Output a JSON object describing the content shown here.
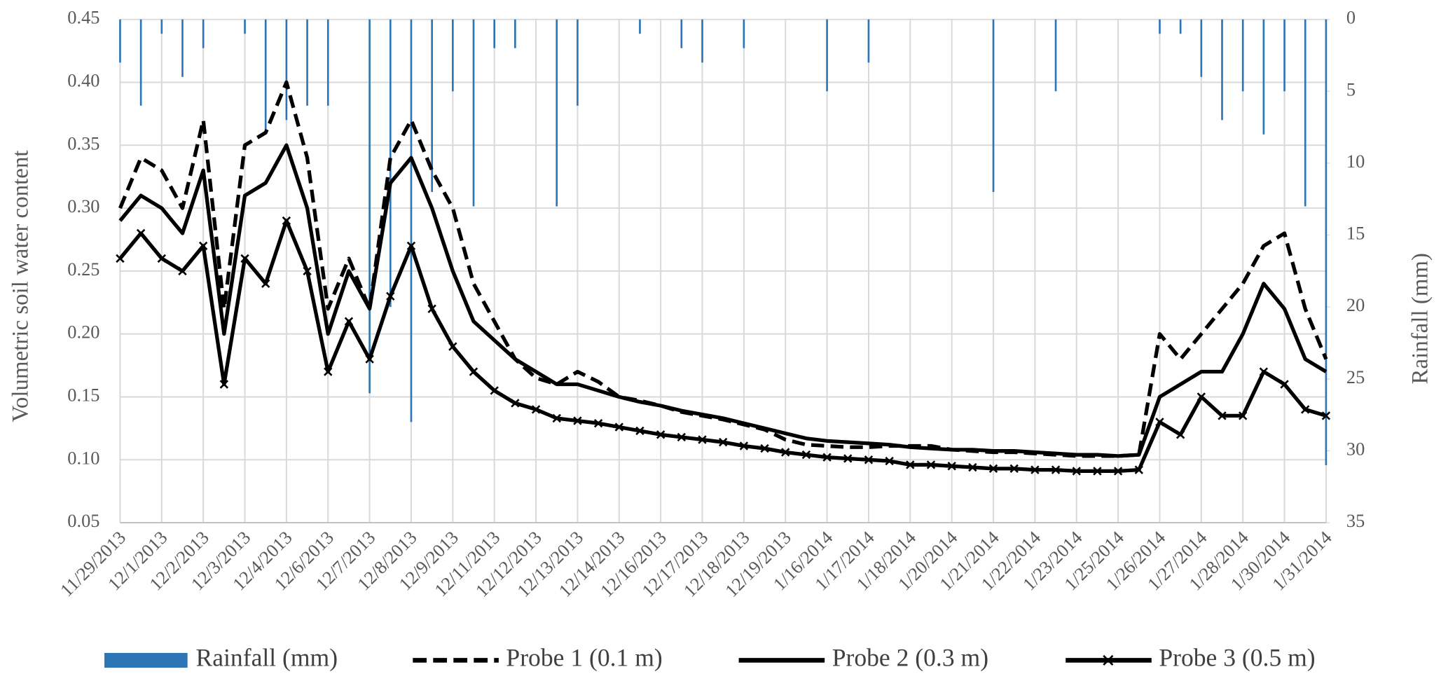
{
  "chart_data": {
    "type": "line",
    "y_label": "Volumetric soil water content",
    "y2_label": "Rainfall (mm)",
    "categories": [
      "11/29/2013",
      null,
      "12/1/2013",
      null,
      "12/2/2013",
      null,
      "12/3/2013",
      null,
      "12/4/2013",
      null,
      "12/6/2013",
      null,
      "12/7/2013",
      null,
      "12/8/2013",
      null,
      "12/9/2013",
      null,
      "12/11/2013",
      null,
      "12/12/2013",
      null,
      "12/13/2013",
      null,
      "12/14/2013",
      null,
      "12/16/2013",
      null,
      "12/17/2013",
      null,
      "12/18/2013",
      null,
      "12/19/2013",
      null,
      "1/16/2014",
      null,
      "1/17/2014",
      null,
      "1/18/2014",
      null,
      "1/20/2014",
      null,
      "1/21/2014",
      null,
      "1/22/2014",
      null,
      "1/23/2014",
      null,
      "1/25/2014",
      null,
      "1/26/2014",
      null,
      "1/27/2014",
      null,
      "1/28/2014",
      null,
      "1/30/2014",
      null,
      "1/31/2014"
    ],
    "series": [
      {
        "name": "Rainfall (mm)",
        "type": "bar",
        "axis": "y2",
        "color": "#2e75b6",
        "values": [
          3,
          6,
          1,
          4,
          2,
          0,
          1,
          8,
          7,
          6,
          6,
          0,
          26,
          20,
          28,
          12,
          5,
          13,
          2,
          2,
          0,
          13,
          6,
          0,
          0,
          1,
          0,
          2,
          3,
          0,
          2,
          0,
          0,
          0,
          5,
          0,
          3,
          0,
          0,
          0,
          0,
          0,
          12,
          0,
          0,
          5,
          0,
          0,
          0,
          0,
          1,
          1,
          4,
          7,
          5,
          8,
          5,
          13,
          31
        ]
      },
      {
        "name": "Probe 1 (0.1 m)",
        "line_style": "dashed",
        "color": "#000000",
        "values": [
          0.3,
          0.34,
          0.33,
          0.3,
          0.37,
          0.22,
          0.35,
          0.36,
          0.4,
          0.34,
          0.22,
          0.26,
          0.22,
          0.34,
          0.37,
          0.33,
          0.3,
          0.24,
          0.21,
          0.18,
          0.165,
          0.16,
          0.17,
          0.162,
          0.15,
          0.147,
          0.143,
          0.138,
          0.135,
          0.132,
          0.128,
          0.124,
          0.116,
          0.112,
          0.111,
          0.11,
          0.11,
          0.111,
          0.111,
          0.111,
          0.108,
          0.107,
          0.106,
          0.106,
          0.105,
          0.104,
          0.103,
          0.103,
          0.103,
          0.104,
          0.2,
          0.18,
          0.2,
          0.22,
          0.24,
          0.27,
          0.28,
          0.22,
          0.18
        ]
      },
      {
        "name": "Probe 2 (0.3 m)",
        "line_style": "solid",
        "color": "#000000",
        "values": [
          0.29,
          0.31,
          0.3,
          0.28,
          0.33,
          0.2,
          0.31,
          0.32,
          0.35,
          0.3,
          0.2,
          0.25,
          0.22,
          0.32,
          0.34,
          0.3,
          0.25,
          0.21,
          0.195,
          0.18,
          0.17,
          0.16,
          0.16,
          0.155,
          0.15,
          0.146,
          0.143,
          0.139,
          0.136,
          0.133,
          0.129,
          0.125,
          0.121,
          0.117,
          0.115,
          0.114,
          0.113,
          0.112,
          0.11,
          0.109,
          0.108,
          0.108,
          0.107,
          0.107,
          0.106,
          0.105,
          0.104,
          0.104,
          0.103,
          0.104,
          0.15,
          0.16,
          0.17,
          0.17,
          0.2,
          0.24,
          0.22,
          0.18,
          0.17
        ]
      },
      {
        "name": "Probe 3 (0.5 m)",
        "line_style": "solid",
        "marker": "x",
        "color": "#000000",
        "values": [
          0.26,
          0.28,
          0.26,
          0.25,
          0.27,
          0.16,
          0.26,
          0.24,
          0.29,
          0.25,
          0.17,
          0.21,
          0.18,
          0.23,
          0.27,
          0.22,
          0.19,
          0.17,
          0.155,
          0.145,
          0.14,
          0.133,
          0.131,
          0.129,
          0.126,
          0.123,
          0.12,
          0.118,
          0.116,
          0.114,
          0.111,
          0.109,
          0.106,
          0.104,
          0.102,
          0.101,
          0.1,
          0.099,
          0.096,
          0.096,
          0.095,
          0.094,
          0.093,
          0.093,
          0.092,
          0.092,
          0.091,
          0.091,
          0.091,
          0.092,
          0.13,
          0.12,
          0.15,
          0.135,
          0.135,
          0.17,
          0.16,
          0.14,
          0.135
        ]
      }
    ],
    "ylim": [
      0.05,
      0.45
    ],
    "yticks": [
      0.05,
      {
        "value": 0.1,
        "label": "0.10"
      },
      0.15,
      {
        "value": 0.2,
        "label": "0.20"
      },
      0.25,
      {
        "value": 0.3,
        "label": "0.30"
      },
      0.35,
      {
        "value": 0.4,
        "label": "0.40"
      },
      0.45
    ],
    "y2lim": [
      0,
      35
    ],
    "y2_inverted": true,
    "y2ticks": [
      0,
      5,
      10,
      15,
      20,
      25,
      30,
      35
    ],
    "grid": true,
    "legend": "bottom"
  }
}
